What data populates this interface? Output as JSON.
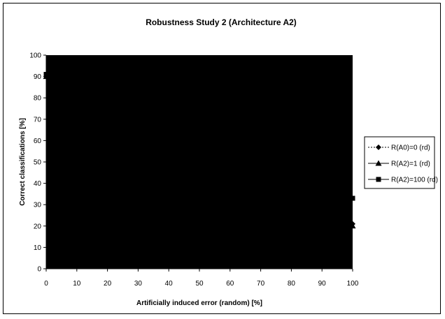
{
  "chart_data": {
    "type": "line",
    "title": "Robustness Study 2 (Architecture A2)",
    "xlabel": "Artificially induced error (random) [%]",
    "ylabel": "Correct classifications [%]",
    "xlim": [
      0,
      100
    ],
    "ylim": [
      0,
      100
    ],
    "x_ticks": [
      0,
      10,
      20,
      30,
      40,
      50,
      60,
      70,
      80,
      90,
      100
    ],
    "y_ticks": [
      0,
      10,
      20,
      30,
      40,
      50,
      60,
      70,
      80,
      90,
      100
    ],
    "plot_background": "#000000",
    "grid": false,
    "legend_position": "right",
    "series": [
      {
        "name": "R(A0)=0 (rd)",
        "marker": "diamond",
        "line_style": "dotted",
        "x": [
          0,
          100
        ],
        "y": [
          90,
          21
        ]
      },
      {
        "name": "R(A2)=1 (rd)",
        "marker": "triangle",
        "line_style": "solid",
        "x": [
          0,
          100
        ],
        "y": [
          90,
          20
        ]
      },
      {
        "name": "R(A2)=100 (rd)",
        "marker": "square",
        "line_style": "solid",
        "x": [
          0,
          100
        ],
        "y": [
          91,
          33
        ]
      }
    ]
  }
}
